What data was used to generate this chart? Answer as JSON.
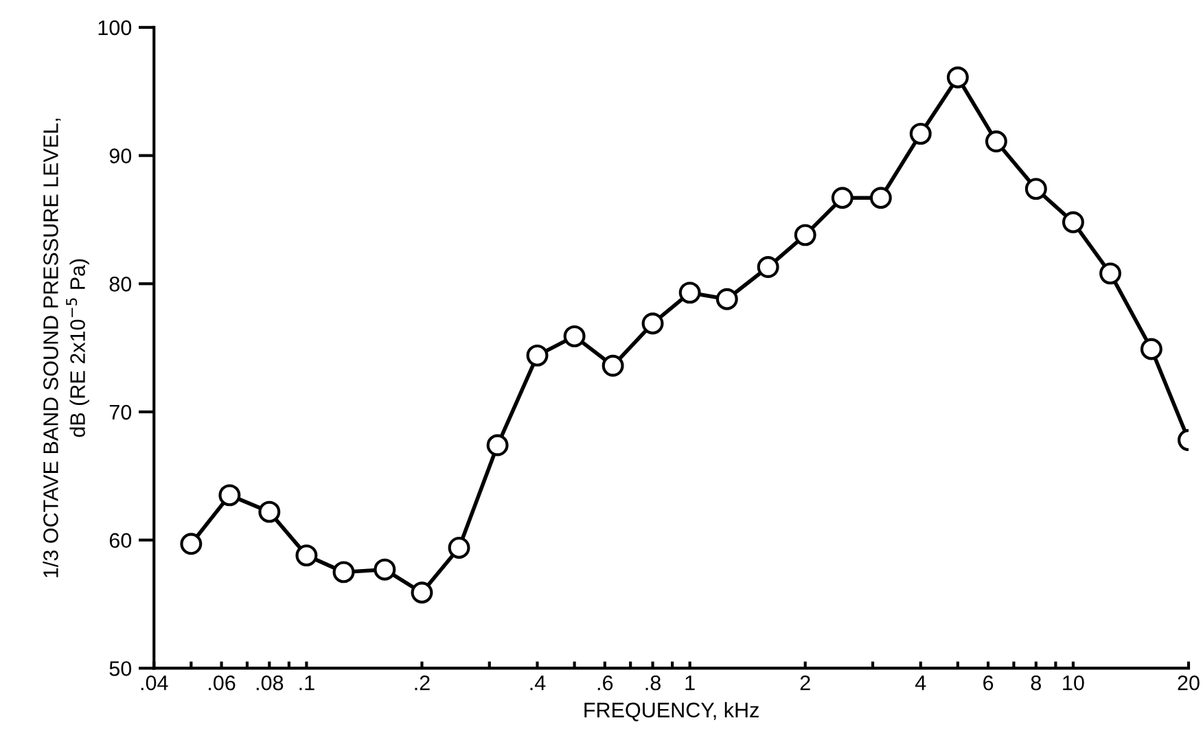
{
  "chart_data": {
    "type": "line",
    "xlabel": "FREQUENCY, kHz",
    "ylabel": "1/3 OCTAVE BAND SOUND PRESSURE LEVEL,\ndB (RE 2x10$^{−5}$ Pa)",
    "log": "x",
    "marker": "circle",
    "line_style": "solid",
    "grid": false,
    "legend": false,
    "x": [
      0.05,
      0.063,
      0.08,
      0.1,
      0.125,
      0.16,
      0.2,
      0.25,
      0.315,
      0.4,
      0.5,
      0.63,
      0.8,
      1,
      1.25,
      1.6,
      2,
      2.5,
      3.15,
      4,
      5,
      6.3,
      8,
      10,
      12.5,
      16,
      20
    ],
    "series": [
      {
        "color": "#000000",
        "values": [
          59.7,
          63.5,
          62.2,
          58.8,
          57.5,
          57.7,
          55.9,
          59.4,
          67.4,
          74.4,
          75.9,
          73.6,
          76.9,
          79.3,
          78.8,
          81.3,
          83.8,
          86.7,
          86.7,
          91.7,
          96.1,
          91.1,
          87.4,
          84.8,
          80.8,
          74.9,
          67.8
        ]
      }
    ],
    "xlim": [
      0.04,
      20
    ],
    "ylim": [
      50,
      100
    ],
    "xticks": [
      {
        "value": 0.04,
        "label": ".04"
      },
      {
        "value": 0.05,
        "label": null
      },
      {
        "value": 0.06,
        "label": ".06"
      },
      {
        "value": 0.07,
        "label": null
      },
      {
        "value": 0.08,
        "label": ".08"
      },
      {
        "value": 0.09,
        "label": null
      },
      {
        "value": 0.1,
        "label": ".1"
      },
      {
        "value": 0.2,
        "label": ".2"
      },
      {
        "value": 0.3,
        "label": null
      },
      {
        "value": 0.4,
        "label": ".4"
      },
      {
        "value": 0.5,
        "label": null
      },
      {
        "value": 0.6,
        "label": ".6"
      },
      {
        "value": 0.7,
        "label": null
      },
      {
        "value": 0.8,
        "label": ".8"
      },
      {
        "value": 0.9,
        "label": null
      },
      1,
      2,
      {
        "value": 3,
        "label": null
      },
      4,
      {
        "value": 5,
        "label": null
      },
      6,
      {
        "value": 7,
        "label": null
      },
      8,
      {
        "value": 9,
        "label": null
      },
      10,
      20
    ],
    "yticks": [
      50,
      60,
      70,
      80,
      90,
      100
    ]
  }
}
